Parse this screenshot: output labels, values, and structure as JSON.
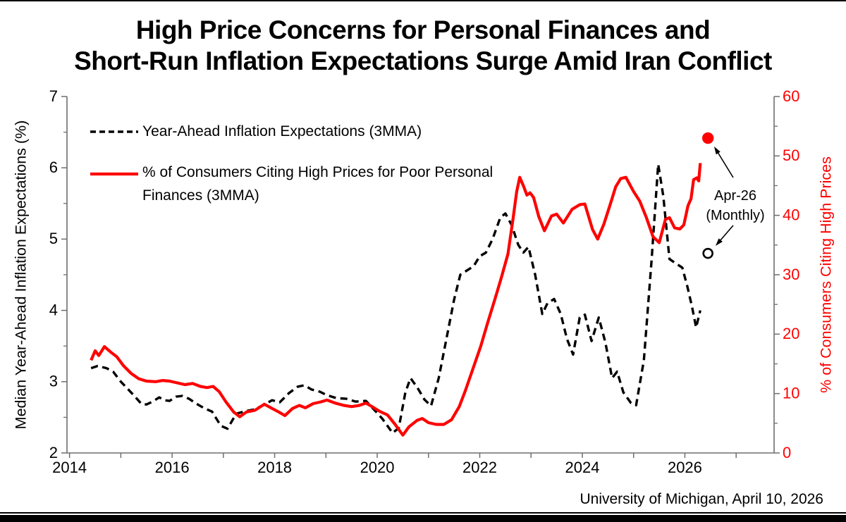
{
  "title": {
    "line1": "High Price Concerns for Personal Finances and",
    "line2": "Short-Run Inflation Expectations Surge Amid Iran Conflict"
  },
  "source": "University of Michigan, April 10, 2026",
  "colors": {
    "red": "#ff0000",
    "black": "#000000",
    "axis": "#6e6e6e"
  },
  "legend": {
    "items": [
      {
        "label": "Year-Ahead Inflation Expectations (3MMA)"
      },
      {
        "label": "% of Consumers Citing High Prices for Poor Personal Finances (3MMA)"
      }
    ]
  },
  "chart_data": {
    "type": "line",
    "x_axis": {
      "tick_years": [
        2014,
        2015,
        2016,
        2017,
        2018,
        2019,
        2020,
        2021,
        2022,
        2023,
        2024,
        2025,
        2026,
        2027
      ],
      "label_years": [
        2014,
        2016,
        2018,
        2020,
        2022,
        2024,
        2026
      ]
    },
    "left_axis": {
      "title": "Median Year-Ahead Inflation Expectations (%)",
      "min": 2,
      "max": 7,
      "major_ticks": [
        2,
        3,
        4,
        5,
        6,
        7
      ],
      "minor_ticks": [
        2.5,
        3.5,
        4.5,
        5.5,
        6.5
      ]
    },
    "right_axis": {
      "title": "% of Consumers Citing High Prices",
      "min": 0,
      "max": 60,
      "major_ticks": [
        0,
        10,
        20,
        30,
        40,
        50,
        60
      ],
      "minor_ticks": [
        5,
        15,
        25,
        35,
        45,
        55
      ],
      "color": "#ff0000"
    },
    "series": [
      {
        "name": "Year-Ahead Inflation Expectations (3MMA)",
        "axis": "left",
        "line_style": "dashed",
        "color": "#000000",
        "points": [
          [
            2014.42,
            3.19
          ],
          [
            2014.55,
            3.22
          ],
          [
            2014.72,
            3.19
          ],
          [
            2014.85,
            3.14
          ],
          [
            2015.0,
            3.0
          ],
          [
            2015.12,
            2.91
          ],
          [
            2015.25,
            2.81
          ],
          [
            2015.4,
            2.69
          ],
          [
            2015.5,
            2.68
          ],
          [
            2015.62,
            2.72
          ],
          [
            2015.75,
            2.78
          ],
          [
            2015.85,
            2.74
          ],
          [
            2015.95,
            2.73
          ],
          [
            2016.08,
            2.79
          ],
          [
            2016.2,
            2.8
          ],
          [
            2016.33,
            2.76
          ],
          [
            2016.5,
            2.68
          ],
          [
            2016.62,
            2.63
          ],
          [
            2016.78,
            2.58
          ],
          [
            2016.95,
            2.38
          ],
          [
            2017.08,
            2.34
          ],
          [
            2017.25,
            2.55
          ],
          [
            2017.45,
            2.59
          ],
          [
            2017.6,
            2.61
          ],
          [
            2017.78,
            2.67
          ],
          [
            2017.95,
            2.74
          ],
          [
            2018.1,
            2.71
          ],
          [
            2018.28,
            2.84
          ],
          [
            2018.45,
            2.93
          ],
          [
            2018.58,
            2.95
          ],
          [
            2018.72,
            2.89
          ],
          [
            2018.88,
            2.86
          ],
          [
            2019.02,
            2.81
          ],
          [
            2019.2,
            2.77
          ],
          [
            2019.4,
            2.76
          ],
          [
            2019.58,
            2.72
          ],
          [
            2019.78,
            2.73
          ],
          [
            2019.95,
            2.6
          ],
          [
            2020.1,
            2.48
          ],
          [
            2020.3,
            2.28
          ],
          [
            2020.42,
            2.35
          ],
          [
            2020.55,
            2.85
          ],
          [
            2020.65,
            3.05
          ],
          [
            2020.78,
            2.92
          ],
          [
            2020.92,
            2.75
          ],
          [
            2021.05,
            2.66
          ],
          [
            2021.2,
            3.05
          ],
          [
            2021.35,
            3.6
          ],
          [
            2021.5,
            4.15
          ],
          [
            2021.62,
            4.5
          ],
          [
            2021.75,
            4.56
          ],
          [
            2021.88,
            4.62
          ],
          [
            2022.0,
            4.76
          ],
          [
            2022.12,
            4.81
          ],
          [
            2022.25,
            5.0
          ],
          [
            2022.4,
            5.3
          ],
          [
            2022.5,
            5.36
          ],
          [
            2022.62,
            5.2
          ],
          [
            2022.75,
            4.92
          ],
          [
            2022.85,
            4.81
          ],
          [
            2022.95,
            4.89
          ],
          [
            2023.08,
            4.5
          ],
          [
            2023.22,
            3.95
          ],
          [
            2023.32,
            4.1
          ],
          [
            2023.45,
            4.16
          ],
          [
            2023.58,
            3.95
          ],
          [
            2023.7,
            3.6
          ],
          [
            2023.82,
            3.38
          ],
          [
            2023.95,
            3.9
          ],
          [
            2024.05,
            3.94
          ],
          [
            2024.18,
            3.57
          ],
          [
            2024.32,
            3.9
          ],
          [
            2024.45,
            3.55
          ],
          [
            2024.58,
            3.05
          ],
          [
            2024.68,
            3.14
          ],
          [
            2024.8,
            2.85
          ],
          [
            2024.95,
            2.7
          ],
          [
            2025.05,
            2.67
          ],
          [
            2025.2,
            3.3
          ],
          [
            2025.35,
            4.7
          ],
          [
            2025.48,
            6.05
          ],
          [
            2025.58,
            5.6
          ],
          [
            2025.7,
            4.72
          ],
          [
            2025.82,
            4.66
          ],
          [
            2025.95,
            4.6
          ],
          [
            2026.05,
            4.33
          ],
          [
            2026.14,
            4.05
          ],
          [
            2026.22,
            3.76
          ],
          [
            2026.3,
            4.0
          ]
        ]
      },
      {
        "name": "% of Consumers Citing High Prices for Poor Personal Finances (3MMA)",
        "axis": "right",
        "line_style": "solid",
        "color": "#ff0000",
        "points": [
          [
            2014.42,
            15.6
          ],
          [
            2014.5,
            17.2
          ],
          [
            2014.57,
            16.4
          ],
          [
            2014.68,
            17.9
          ],
          [
            2014.8,
            17.0
          ],
          [
            2014.92,
            16.2
          ],
          [
            2015.05,
            14.7
          ],
          [
            2015.2,
            13.4
          ],
          [
            2015.35,
            12.5
          ],
          [
            2015.5,
            12.1
          ],
          [
            2015.68,
            12.0
          ],
          [
            2015.82,
            12.2
          ],
          [
            2015.95,
            12.1
          ],
          [
            2016.1,
            11.8
          ],
          [
            2016.25,
            11.5
          ],
          [
            2016.4,
            11.7
          ],
          [
            2016.55,
            11.2
          ],
          [
            2016.68,
            11.0
          ],
          [
            2016.8,
            11.2
          ],
          [
            2016.92,
            10.3
          ],
          [
            2017.05,
            8.6
          ],
          [
            2017.2,
            6.9
          ],
          [
            2017.32,
            6.1
          ],
          [
            2017.45,
            6.9
          ],
          [
            2017.62,
            7.2
          ],
          [
            2017.8,
            8.2
          ],
          [
            2017.95,
            7.5
          ],
          [
            2018.08,
            6.9
          ],
          [
            2018.2,
            6.3
          ],
          [
            2018.35,
            7.5
          ],
          [
            2018.48,
            8.0
          ],
          [
            2018.6,
            7.6
          ],
          [
            2018.75,
            8.3
          ],
          [
            2018.9,
            8.6
          ],
          [
            2019.02,
            8.9
          ],
          [
            2019.18,
            8.4
          ],
          [
            2019.35,
            8.0
          ],
          [
            2019.5,
            7.8
          ],
          [
            2019.65,
            8.0
          ],
          [
            2019.78,
            8.4
          ],
          [
            2019.92,
            7.7
          ],
          [
            2020.05,
            7.0
          ],
          [
            2020.2,
            6.4
          ],
          [
            2020.35,
            4.8
          ],
          [
            2020.5,
            3.0
          ],
          [
            2020.62,
            4.4
          ],
          [
            2020.78,
            5.5
          ],
          [
            2020.88,
            5.8
          ],
          [
            2021.0,
            5.1
          ],
          [
            2021.15,
            4.8
          ],
          [
            2021.3,
            4.8
          ],
          [
            2021.45,
            5.6
          ],
          [
            2021.6,
            7.8
          ],
          [
            2021.72,
            10.5
          ],
          [
            2021.88,
            14.5
          ],
          [
            2022.02,
            18.0
          ],
          [
            2022.15,
            21.8
          ],
          [
            2022.3,
            26.0
          ],
          [
            2022.42,
            29.5
          ],
          [
            2022.55,
            33.5
          ],
          [
            2022.65,
            39.5
          ],
          [
            2022.72,
            44.0
          ],
          [
            2022.78,
            46.4
          ],
          [
            2022.85,
            45.0
          ],
          [
            2022.92,
            43.4
          ],
          [
            2022.98,
            43.8
          ],
          [
            2023.05,
            43.0
          ],
          [
            2023.15,
            39.8
          ],
          [
            2023.26,
            37.4
          ],
          [
            2023.4,
            39.9
          ],
          [
            2023.5,
            40.2
          ],
          [
            2023.63,
            38.7
          ],
          [
            2023.8,
            41.0
          ],
          [
            2023.95,
            41.8
          ],
          [
            2024.05,
            41.9
          ],
          [
            2024.2,
            37.6
          ],
          [
            2024.3,
            36.0
          ],
          [
            2024.42,
            38.5
          ],
          [
            2024.55,
            42.0
          ],
          [
            2024.65,
            44.8
          ],
          [
            2024.75,
            46.2
          ],
          [
            2024.85,
            46.4
          ],
          [
            2025.0,
            44.0
          ],
          [
            2025.12,
            42.4
          ],
          [
            2025.25,
            39.6
          ],
          [
            2025.38,
            36.4
          ],
          [
            2025.5,
            35.4
          ],
          [
            2025.62,
            39.3
          ],
          [
            2025.7,
            39.6
          ],
          [
            2025.8,
            37.9
          ],
          [
            2025.9,
            37.7
          ],
          [
            2025.98,
            38.4
          ],
          [
            2026.06,
            41.6
          ],
          [
            2026.12,
            42.8
          ],
          [
            2026.17,
            46.0
          ],
          [
            2026.23,
            46.3
          ],
          [
            2026.27,
            45.8
          ],
          [
            2026.3,
            48.8
          ]
        ]
      }
    ],
    "latest_monthly": {
      "annotation_line1": "Apr-26",
      "annotation_line2": "(Monthly)",
      "red_dot": {
        "month": "Apr-26",
        "axis": "right",
        "value": 53
      },
      "open_dot": {
        "month": "Apr-26",
        "axis": "left",
        "value": 4.8
      }
    }
  }
}
